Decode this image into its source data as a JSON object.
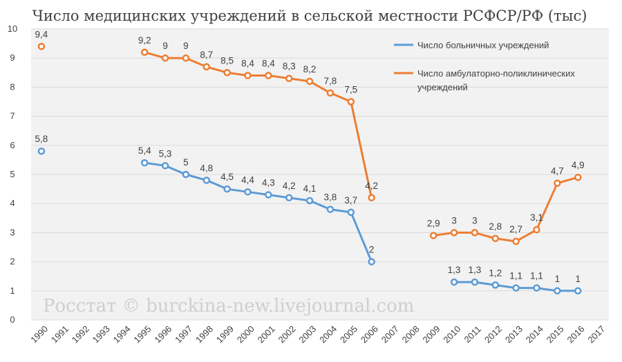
{
  "chart_data": {
    "type": "line",
    "title": "Число медицинских учреждений в сельской местности РСФСР/РФ (тыс)",
    "xlabel": "",
    "ylabel": "",
    "ylim": [
      0,
      10
    ],
    "yticks": [
      0,
      1,
      2,
      3,
      4,
      5,
      6,
      7,
      8,
      9,
      10
    ],
    "categories": [
      "1990",
      "1991",
      "1992",
      "1993",
      "1994",
      "1995",
      "1996",
      "1997",
      "1998",
      "1999",
      "2000",
      "2001",
      "2002",
      "2003",
      "2004",
      "2005",
      "2006",
      "2007",
      "2008",
      "2009",
      "2010",
      "2011",
      "2012",
      "2013",
      "2014",
      "2015",
      "2016",
      "2017"
    ],
    "series": [
      {
        "name": "Число больничных учреждений",
        "color": "#5b9bd5",
        "values": [
          5.8,
          null,
          null,
          null,
          null,
          5.4,
          5.3,
          5,
          4.8,
          4.5,
          4.4,
          4.3,
          4.2,
          4.1,
          3.8,
          3.7,
          2,
          null,
          null,
          null,
          1.3,
          1.3,
          1.2,
          1.1,
          1.1,
          1,
          1,
          null
        ],
        "labels": [
          "5,8",
          null,
          null,
          null,
          null,
          "5,4",
          "5,3",
          "5",
          "4,8",
          "4,5",
          "4,4",
          "4,3",
          "4,2",
          "4,1",
          "3,8",
          "3,7",
          "2",
          null,
          null,
          null,
          "1,3",
          "1,3",
          "1,2",
          "1,1",
          "1,1",
          "1",
          "1",
          null
        ]
      },
      {
        "name": "Число амбулаторно-поликлинических учреждений",
        "legend_lines": [
          "Число амбулаторно-поликлинических",
          "учреждений"
        ],
        "color": "#ed7d31",
        "values": [
          9.4,
          null,
          null,
          null,
          null,
          9.2,
          9,
          9,
          8.7,
          8.5,
          8.4,
          8.4,
          8.3,
          8.2,
          7.8,
          7.5,
          4.2,
          null,
          null,
          2.9,
          3,
          3,
          2.8,
          2.7,
          3.1,
          4.7,
          4.9,
          null
        ],
        "labels": [
          "9,4",
          null,
          null,
          null,
          null,
          "9,2",
          "9",
          "9",
          "8,7",
          "8,5",
          "8,4",
          "8,4",
          "8,3",
          "8,2",
          "7,8",
          "7,5",
          "4,2",
          null,
          null,
          "2,9",
          "3",
          "3",
          "2,8",
          "2,7",
          "3,1",
          "4,7",
          "4,9",
          null
        ]
      }
    ],
    "legend_position": "top-right",
    "grid": true
  },
  "watermark": "Росстат © burckina-new.livejournal.com"
}
